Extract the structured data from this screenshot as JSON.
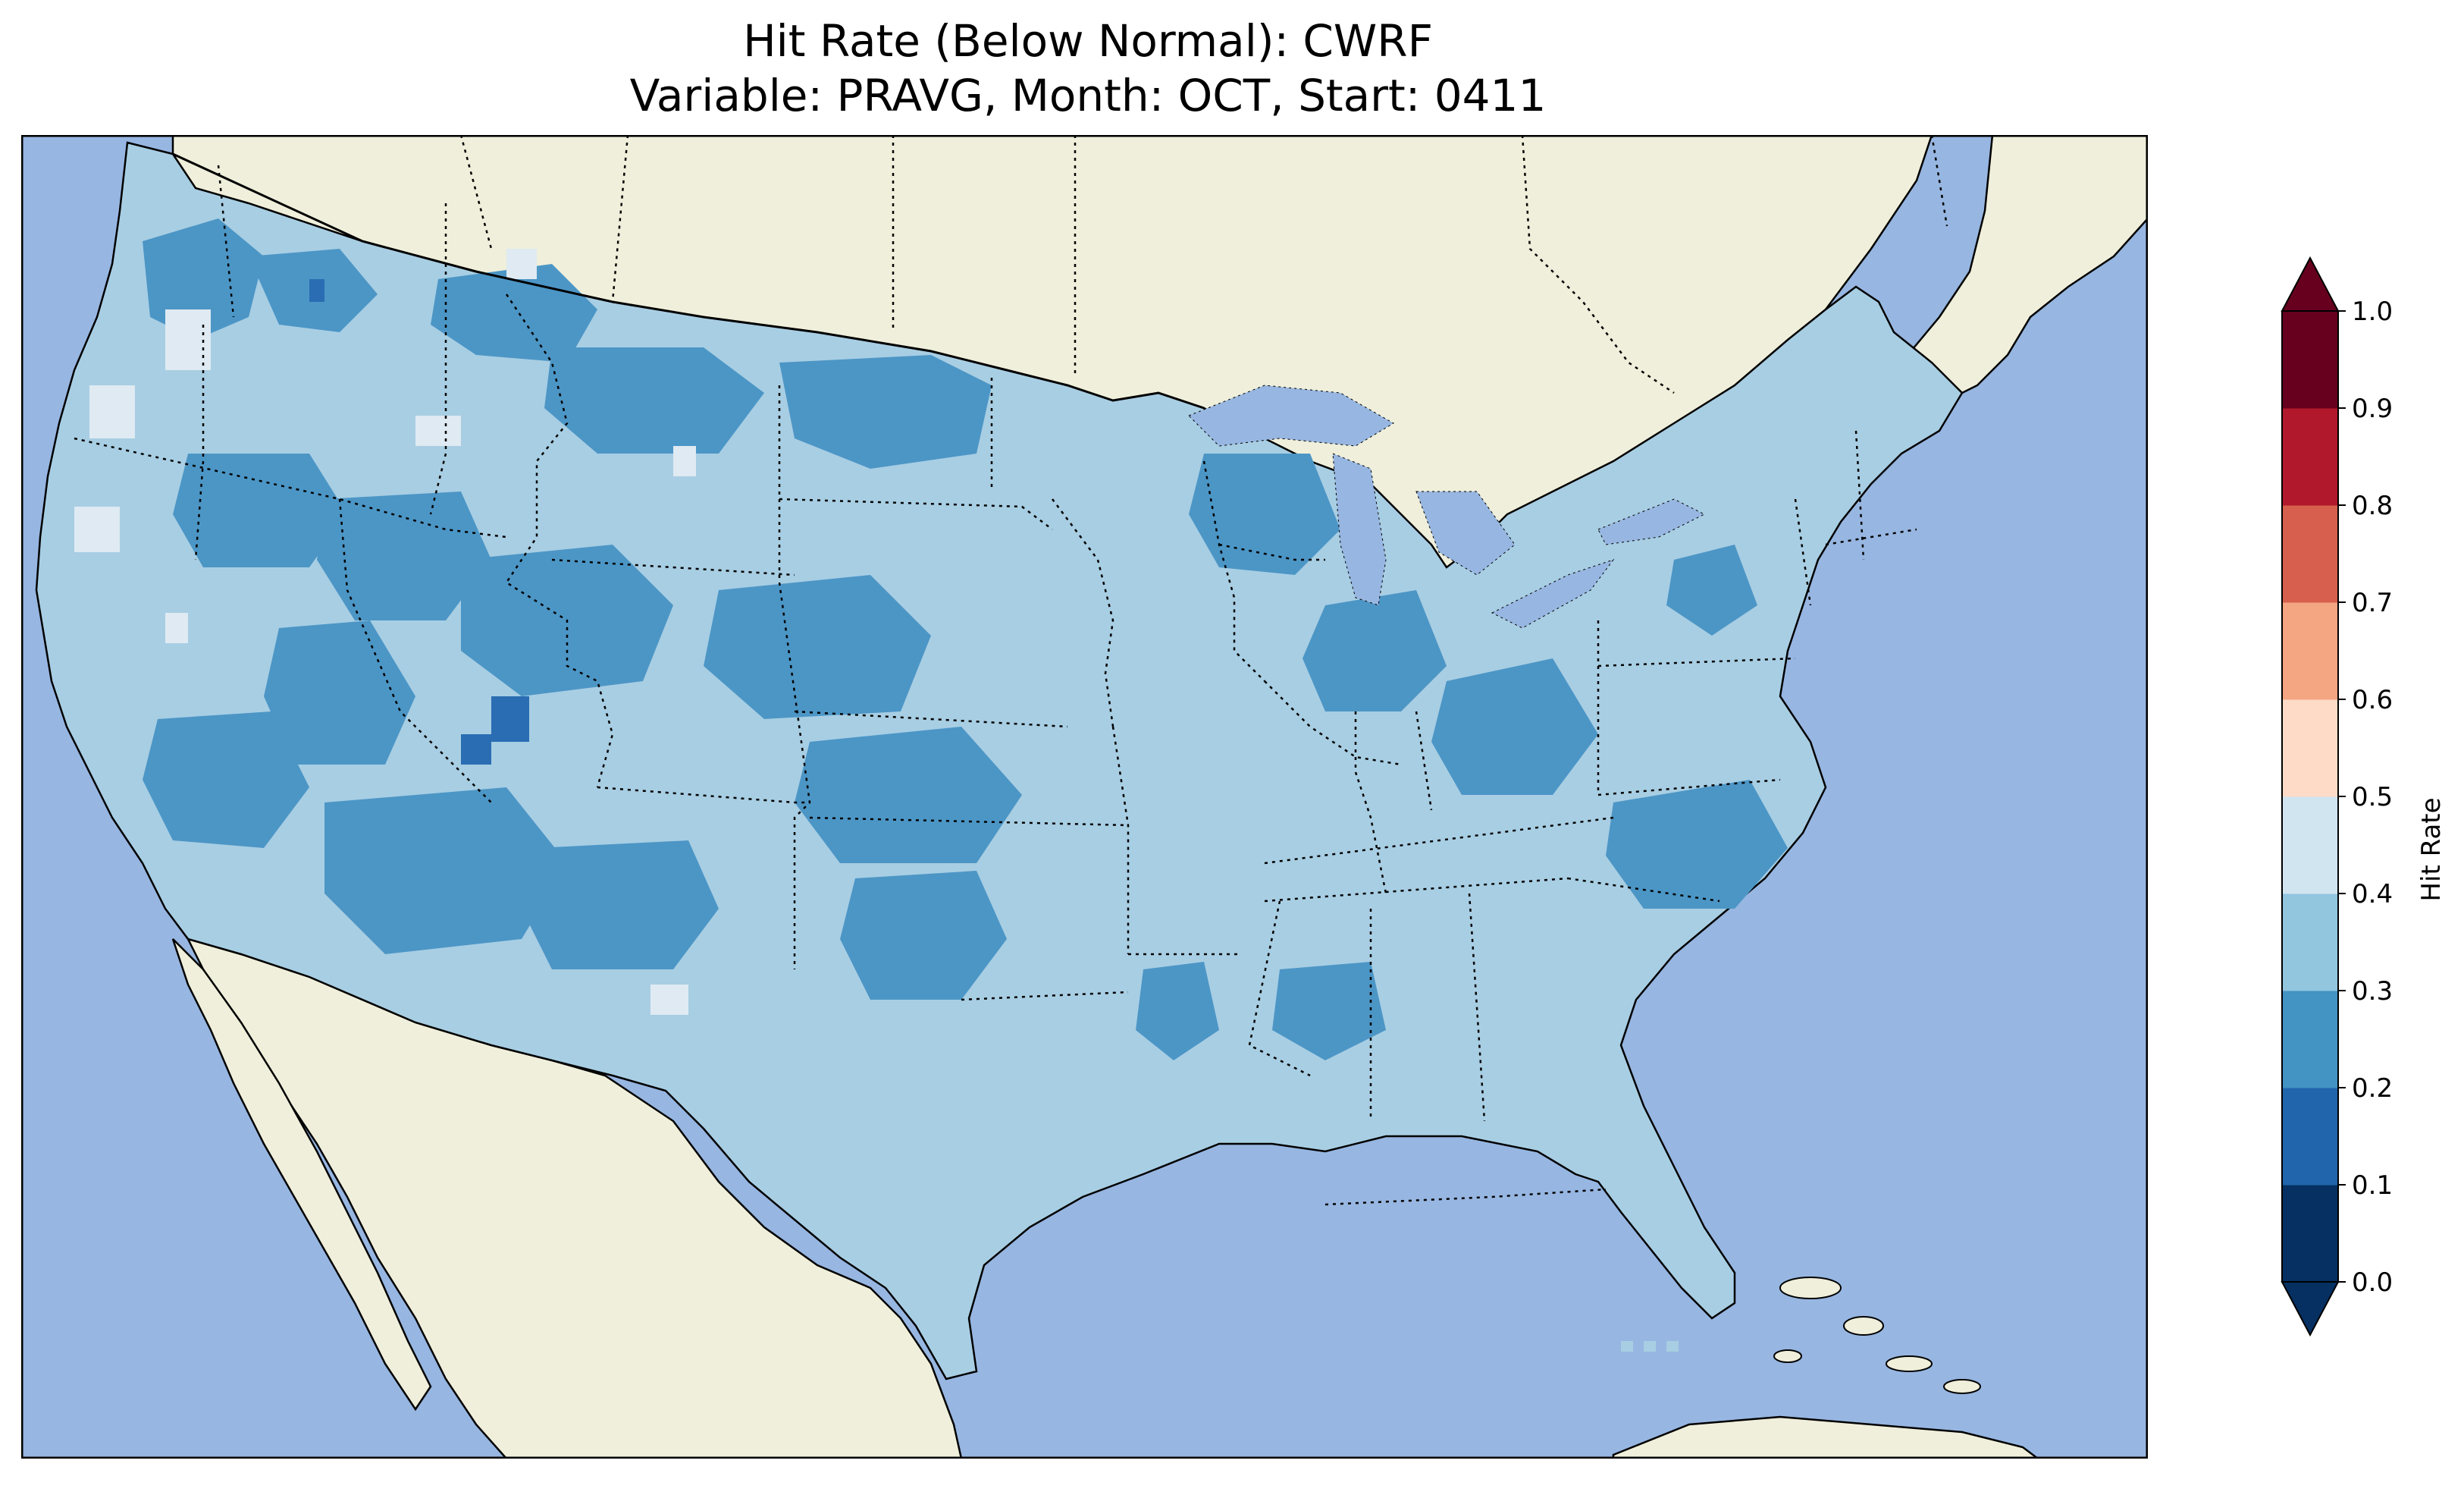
{
  "title": {
    "line1": "Hit Rate (Below Normal): CWRF",
    "line2": "Variable: PRAVG, Month: OCT, Start: 0411"
  },
  "colors": {
    "ocean": "#97b6e1",
    "land": "#efefdb",
    "lakes": "#97b6e1",
    "bins": [
      "#053061",
      "#2166ac",
      "#4393c3",
      "#92c5de",
      "#d1e5f0",
      "#fddbc7",
      "#f4a582",
      "#d6604d",
      "#b2182b",
      "#67001f"
    ],
    "map_fill_0_2": "#4c96c6",
    "map_fill_2_3": "#4c96c6",
    "map_fill_3_4": "#a8cee3",
    "map_fill_4_5": "#dfeaf2",
    "map_fill_1_2": "#2a6db3"
  },
  "colorbar": {
    "label": "Hit Rate",
    "ticks": [
      "0.0",
      "0.1",
      "0.2",
      "0.3",
      "0.4",
      "0.5",
      "0.6",
      "0.7",
      "0.8",
      "0.9",
      "1.0"
    ],
    "extend": "both"
  },
  "map_data": {
    "region": "Contiguous United States",
    "dominant_bin": "0.3-0.4",
    "secondary_bin": "0.2-0.3",
    "sparse_bins": [
      "0.4-0.5",
      "0.1-0.2"
    ]
  }
}
